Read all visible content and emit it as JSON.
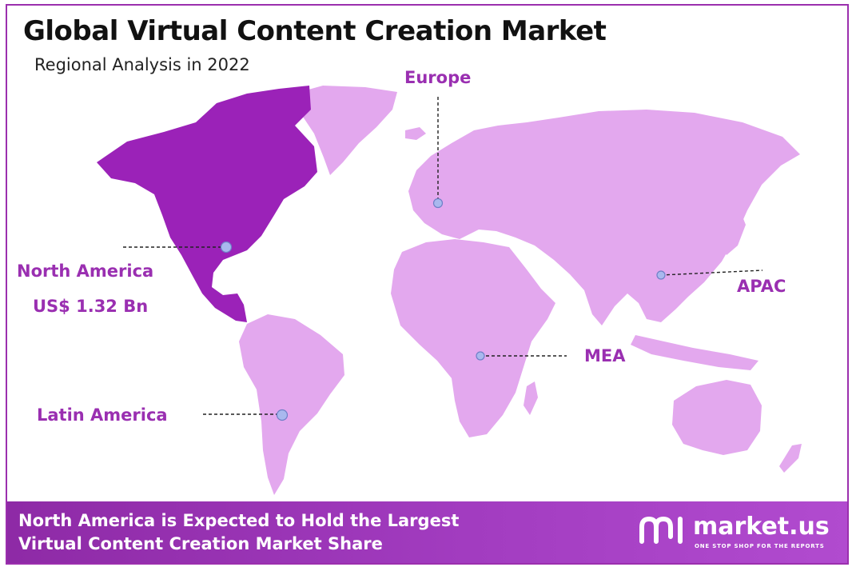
{
  "header": {
    "title": "Global Virtual Content Creation Market",
    "subtitle": "Regional Analysis in 2022"
  },
  "regions": {
    "north_america": {
      "name": "North America",
      "value": "US$ 1.32 Bn"
    },
    "europe": {
      "name": "Europe"
    },
    "apac": {
      "name": "APAC"
    },
    "mea": {
      "name": "MEA"
    },
    "latin_america": {
      "name": "Latin America"
    }
  },
  "footer": {
    "line1": "North America is Expected to Hold the Largest",
    "line2": "Virtual Content Creation Market Share"
  },
  "brand": {
    "name": "market.us",
    "tagline": "ONE STOP SHOP FOR THE REPORTS"
  },
  "colors": {
    "highlight_region": "#9b22b8",
    "other_regions": "#e3a8ee",
    "label": "#9a2fb1",
    "frame_border": "#9b2fae",
    "footer_bg": "#a03ab9",
    "marker": "#a9b8ee"
  }
}
